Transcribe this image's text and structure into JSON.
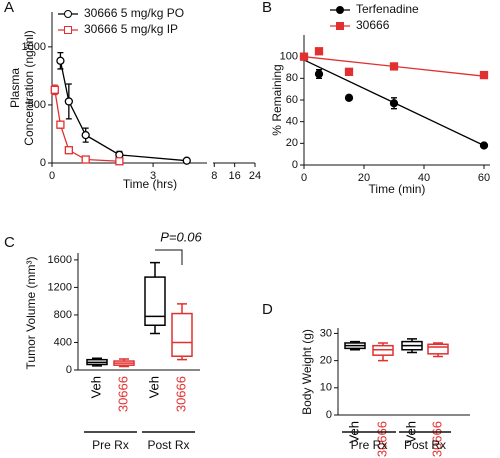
{
  "chart_data": [
    {
      "type": "line",
      "panel_label": "A",
      "ylabel": [
        "Plasma",
        "Concentration (ng/ml)"
      ],
      "xlabel": "Time (hrs)",
      "xlim": [
        0,
        24
      ],
      "x_break": [
        4.6,
        7.5
      ],
      "xticks": [
        0,
        3,
        8,
        16,
        24
      ],
      "ylim": [
        0,
        1300
      ],
      "yticks": [
        0,
        500,
        1000
      ],
      "series": [
        {
          "name": "30666 5 mg/kg PO",
          "color": "#000000",
          "marker": "circle",
          "filled": false,
          "x": [
            0.25,
            0.5,
            1,
            2,
            4
          ],
          "values": [
            880,
            530,
            240,
            70,
            20
          ],
          "errors": [
            70,
            150,
            60,
            30,
            10
          ]
        },
        {
          "name": "30666 5 mg/kg IP",
          "color": "#e03030",
          "marker": "square",
          "filled": false,
          "x": [
            0.083,
            0.25,
            0.5,
            1,
            2
          ],
          "values": [
            630,
            330,
            110,
            30,
            15
          ],
          "errors": [
            40,
            30,
            20,
            10,
            5
          ]
        }
      ]
    },
    {
      "type": "scatter",
      "panel_label": "B",
      "ylabel": "% Remaining",
      "xlabel": "Time (min)",
      "xlim": [
        0,
        62
      ],
      "xticks": [
        0,
        20,
        40,
        60
      ],
      "ylim": [
        0,
        120
      ],
      "yticks": [
        0,
        20,
        40,
        60,
        80,
        100
      ],
      "series": [
        {
          "name": "Terfenadine",
          "color": "#000000",
          "marker": "circle",
          "filled": true,
          "x": [
            0,
            5,
            15,
            30,
            60
          ],
          "values": [
            100,
            84,
            62,
            57,
            18
          ],
          "errors": [
            null,
            4,
            null,
            5,
            null
          ],
          "trend_x": [
            0,
            60
          ],
          "trend_values": [
            97,
            18
          ]
        },
        {
          "name": "30666",
          "color": "#e03030",
          "marker": "square",
          "filled": true,
          "x": [
            0,
            5,
            15,
            30,
            60
          ],
          "values": [
            100,
            105,
            86,
            91,
            83
          ],
          "errors": [
            null,
            null,
            null,
            null,
            3
          ],
          "trend_x": [
            0,
            60
          ],
          "trend_values": [
            100,
            82
          ]
        }
      ]
    },
    {
      "type": "box",
      "panel_label": "C",
      "ylabel": "Tumor Volume (mm³)",
      "annotation": "P=0.06",
      "ylim": [
        0,
        1700
      ],
      "yticks": [
        0,
        400,
        800,
        1200,
        1600
      ],
      "categories": [
        "Veh",
        "30666",
        "Veh",
        "30666"
      ],
      "colors": [
        "#000000",
        "#e03030",
        "#000000",
        "#e03030"
      ],
      "groups": [
        "Pre Rx",
        "Post Rx"
      ],
      "boxes": [
        {
          "min": 60,
          "q1": 80,
          "median": 110,
          "q3": 150,
          "max": 170
        },
        {
          "min": 50,
          "q1": 70,
          "median": 100,
          "q3": 130,
          "max": 160
        },
        {
          "min": 530,
          "q1": 650,
          "median": 780,
          "q3": 1350,
          "max": 1560
        },
        {
          "min": 150,
          "q1": 200,
          "median": 400,
          "q3": 820,
          "max": 960
        }
      ]
    },
    {
      "type": "box",
      "panel_label": "D",
      "ylabel": "Body Weight (g)",
      "ylim": [
        0,
        32
      ],
      "yticks": [
        0,
        10,
        20,
        30
      ],
      "categories": [
        "Veh",
        "30666",
        "Veh",
        "30666"
      ],
      "colors": [
        "#000000",
        "#e03030",
        "#000000",
        "#e03030"
      ],
      "groups": [
        "Pre Rx",
        "Post Rx"
      ],
      "boxes": [
        {
          "min": 24,
          "q1": 24.5,
          "median": 25.5,
          "q3": 26.5,
          "max": 27
        },
        {
          "min": 20,
          "q1": 22,
          "median": 24,
          "q3": 25.5,
          "max": 26.5
        },
        {
          "min": 23,
          "q1": 24,
          "median": 25.5,
          "q3": 27,
          "max": 28
        },
        {
          "min": 21.5,
          "q1": 22.5,
          "median": 25,
          "q3": 26,
          "max": 26.5
        }
      ]
    }
  ]
}
